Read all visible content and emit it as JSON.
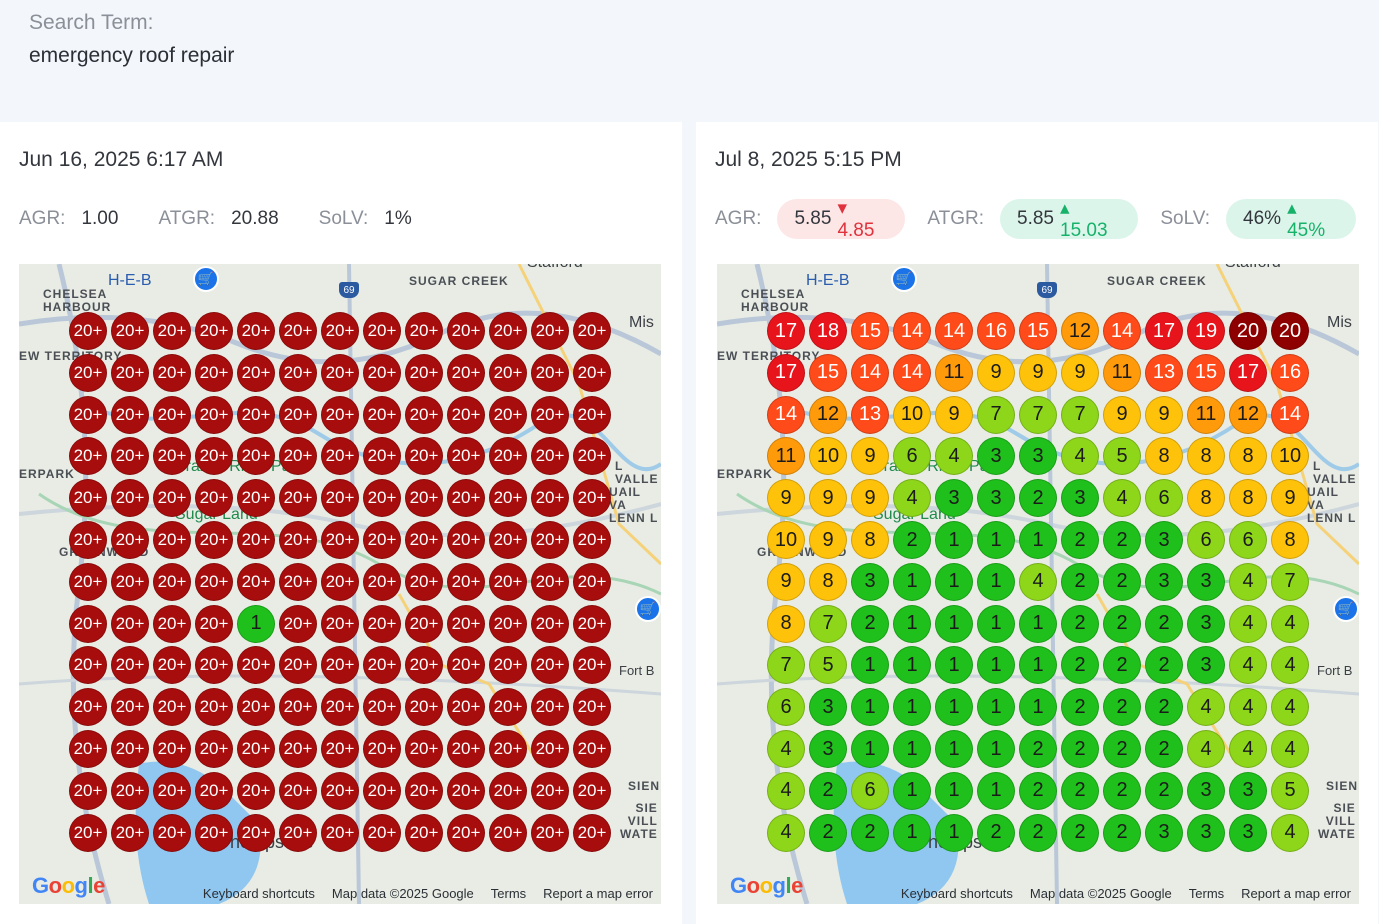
{
  "search": {
    "label": "Search Term:",
    "value": "emergency roof repair"
  },
  "panels": [
    {
      "date": "Jun 16, 2025 6:17 AM",
      "metrics": {
        "agr_label": "AGR:",
        "agr_value": "1.00",
        "atgr_label": "ATGR:",
        "atgr_value": "20.88",
        "solv_label": "SoLV:",
        "solv_value": "1%"
      },
      "grid": [
        [
          "20+",
          "20+",
          "20+",
          "20+",
          "20+",
          "20+",
          "20+",
          "20+",
          "20+",
          "20+",
          "20+",
          "20+",
          "20+"
        ],
        [
          "20+",
          "20+",
          "20+",
          "20+",
          "20+",
          "20+",
          "20+",
          "20+",
          "20+",
          "20+",
          "20+",
          "20+",
          "20+"
        ],
        [
          "20+",
          "20+",
          "20+",
          "20+",
          "20+",
          "20+",
          "20+",
          "20+",
          "20+",
          "20+",
          "20+",
          "20+",
          "20+"
        ],
        [
          "20+",
          "20+",
          "20+",
          "20+",
          "20+",
          "20+",
          "20+",
          "20+",
          "20+",
          "20+",
          "20+",
          "20+",
          "20+"
        ],
        [
          "20+",
          "20+",
          "20+",
          "20+",
          "20+",
          "20+",
          "20+",
          "20+",
          "20+",
          "20+",
          "20+",
          "20+",
          "20+"
        ],
        [
          "20+",
          "20+",
          "20+",
          "20+",
          "20+",
          "20+",
          "20+",
          "20+",
          "20+",
          "20+",
          "20+",
          "20+",
          "20+"
        ],
        [
          "20+",
          "20+",
          "20+",
          "20+",
          "20+",
          "20+",
          "20+",
          "20+",
          "20+",
          "20+",
          "20+",
          "20+",
          "20+"
        ],
        [
          "20+",
          "20+",
          "20+",
          "20+",
          "1",
          "20+",
          "20+",
          "20+",
          "20+",
          "20+",
          "20+",
          "20+",
          "20+"
        ],
        [
          "20+",
          "20+",
          "20+",
          "20+",
          "20+",
          "20+",
          "20+",
          "20+",
          "20+",
          "20+",
          "20+",
          "20+",
          "20+"
        ],
        [
          "20+",
          "20+",
          "20+",
          "20+",
          "20+",
          "20+",
          "20+",
          "20+",
          "20+",
          "20+",
          "20+",
          "20+",
          "20+"
        ],
        [
          "20+",
          "20+",
          "20+",
          "20+",
          "20+",
          "20+",
          "20+",
          "20+",
          "20+",
          "20+",
          "20+",
          "20+",
          "20+"
        ],
        [
          "20+",
          "20+",
          "20+",
          "20+",
          "20+",
          "20+",
          "20+",
          "20+",
          "20+",
          "20+",
          "20+",
          "20+",
          "20+"
        ],
        [
          "20+",
          "20+",
          "20+",
          "20+",
          "20+",
          "20+",
          "20+",
          "20+",
          "20+",
          "20+",
          "20+",
          "20+",
          "20+"
        ]
      ]
    },
    {
      "date": "Jul 8, 2025 5:15 PM",
      "metrics": {
        "agr_label": "AGR:",
        "agr_value": "5.85",
        "agr_delta": "4.85",
        "atgr_label": "ATGR:",
        "atgr_value": "5.85",
        "atgr_delta": "15.03",
        "solv_label": "SoLV:",
        "solv_value": "46%",
        "solv_delta": "45%"
      },
      "grid": [
        [
          "17",
          "18",
          "15",
          "14",
          "14",
          "16",
          "15",
          "12",
          "14",
          "17",
          "19",
          "20",
          "20"
        ],
        [
          "17",
          "15",
          "14",
          "14",
          "11",
          "9",
          "9",
          "9",
          "11",
          "13",
          "15",
          "17",
          "16"
        ],
        [
          "14",
          "12",
          "13",
          "10",
          "9",
          "7",
          "7",
          "7",
          "9",
          "9",
          "11",
          "12",
          "14"
        ],
        [
          "11",
          "10",
          "9",
          "6",
          "4",
          "3",
          "3",
          "4",
          "5",
          "8",
          "8",
          "8",
          "10"
        ],
        [
          "9",
          "9",
          "9",
          "4",
          "3",
          "3",
          "2",
          "3",
          "4",
          "6",
          "8",
          "8",
          "9"
        ],
        [
          "10",
          "9",
          "8",
          "2",
          "1",
          "1",
          "1",
          "2",
          "2",
          "3",
          "6",
          "6",
          "8"
        ],
        [
          "9",
          "8",
          "3",
          "1",
          "1",
          "1",
          "4",
          "2",
          "2",
          "3",
          "3",
          "4",
          "7"
        ],
        [
          "8",
          "7",
          "2",
          "1",
          "1",
          "1",
          "1",
          "2",
          "2",
          "2",
          "3",
          "4",
          "4"
        ],
        [
          "7",
          "5",
          "1",
          "1",
          "1",
          "1",
          "1",
          "2",
          "2",
          "2",
          "3",
          "4",
          "4"
        ],
        [
          "6",
          "3",
          "1",
          "1",
          "1",
          "1",
          "1",
          "2",
          "2",
          "2",
          "4",
          "4",
          "4"
        ],
        [
          "4",
          "3",
          "1",
          "1",
          "1",
          "1",
          "2",
          "2",
          "2",
          "2",
          "4",
          "4",
          "4"
        ],
        [
          "4",
          "2",
          "6",
          "1",
          "1",
          "1",
          "2",
          "2",
          "2",
          "2",
          "3",
          "3",
          "5"
        ],
        [
          "4",
          "2",
          "2",
          "1",
          "1",
          "2",
          "2",
          "2",
          "2",
          "3",
          "3",
          "3",
          "4"
        ]
      ]
    }
  ],
  "map": {
    "labels": {
      "chelsea": "CHELSEA\nHARBOUR",
      "heb": "H-E-B",
      "sugar_creek": "SUGAR CREEK",
      "stafford": "Stafford",
      "mis": "Mis",
      "territory": "EW TERRITORY",
      "erpark": "ERPARK",
      "sugar_land": "Sugar Land",
      "brazos": "Brazos River Park",
      "valle": "L VALLE",
      "uail": "UAIL VA\nLENN L",
      "greenwood": "GREENWOOD",
      "fort": "Fort B",
      "sien": "SIEN",
      "sie_vill": "SIE\nVILL\nWATE",
      "thompsons": "Thompsons",
      "hwy": "69"
    },
    "footer": {
      "google": "Google",
      "shortcuts": "Keyboard shortcuts",
      "mapdata": "Map data ©2025 Google",
      "terms": "Terms",
      "report": "Report a map error"
    }
  },
  "colors": {
    "rank_20plus": "#a80d0d",
    "rank_20": "#8e0000",
    "rank_17_19": "#e8141c",
    "rank_13_16": "#ff4a1a",
    "rank_11_12": "#ff9a0a",
    "rank_8_10": "#ffc20a",
    "rank_4_7": "#8ed61a",
    "rank_1_3": "#1fc01c",
    "bad": "#e0323c",
    "good": "#17b26a"
  }
}
